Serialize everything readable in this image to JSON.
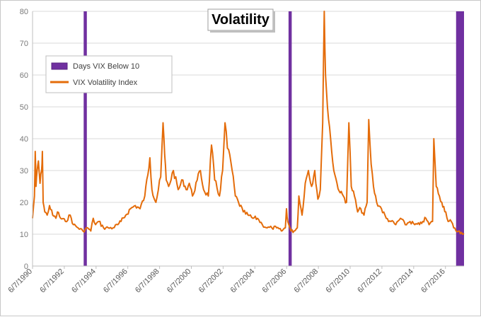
{
  "chart_data": {
    "type": "line",
    "title": "Volatility",
    "xlabel": "",
    "ylabel": "",
    "ylim": [
      0,
      80
    ],
    "y_ticks": [
      0,
      10,
      20,
      30,
      40,
      50,
      60,
      70,
      80
    ],
    "x_tick_labels": [
      "6/7/1990",
      "6/7/1992",
      "6/7/1994",
      "6/7/1996",
      "6/7/1998",
      "6/7/2000",
      "6/7/2002",
      "6/7/2004",
      "6/7/2006",
      "6/7/2008",
      "6/7/2010",
      "6/7/2012",
      "6/7/2014",
      "6/7/2016"
    ],
    "xlim": [
      1990.43,
      2017.6
    ],
    "grid": "horizontal",
    "legend_position": "upper-left",
    "series": [
      {
        "name": "VIX Volatility Index",
        "color": "#e46c0a",
        "x": [
          1990.43,
          1990.55,
          1990.6,
          1990.65,
          1990.72,
          1990.8,
          1990.9,
          1991.0,
          1991.05,
          1991.1,
          1991.2,
          1991.35,
          1991.5,
          1991.7,
          1991.9,
          1992.0,
          1992.2,
          1992.5,
          1992.8,
          1993.0,
          1993.3,
          1993.6,
          1993.9,
          1994.1,
          1994.25,
          1994.4,
          1994.6,
          1994.9,
          1995.2,
          1995.5,
          1995.8,
          1996.0,
          1996.3,
          1996.6,
          1996.9,
          1997.2,
          1997.5,
          1997.82,
          1997.95,
          1998.2,
          1998.5,
          1998.65,
          1998.75,
          1998.85,
          1999.0,
          1999.3,
          1999.6,
          1999.9,
          2000.1,
          2000.3,
          2000.5,
          2000.8,
          2001.0,
          2001.2,
          2001.5,
          2001.7,
          2001.9,
          2002.2,
          2002.4,
          2002.55,
          2002.7,
          2002.85,
          2003.0,
          2003.2,
          2003.4,
          2003.7,
          2004.0,
          2004.3,
          2004.6,
          2004.9,
          2005.2,
          2005.5,
          2005.8,
          2006.1,
          2006.35,
          2006.42,
          2006.5,
          2006.7,
          2006.9,
          2007.1,
          2007.2,
          2007.4,
          2007.6,
          2007.8,
          2008.0,
          2008.2,
          2008.4,
          2008.55,
          2008.7,
          2008.8,
          2008.88,
          2009.0,
          2009.2,
          2009.4,
          2009.6,
          2009.8,
          2010.0,
          2010.2,
          2010.35,
          2010.5,
          2010.7,
          2010.9,
          2011.1,
          2011.3,
          2011.5,
          2011.6,
          2011.75,
          2011.9,
          2012.1,
          2012.4,
          2012.7,
          2013.0,
          2013.3,
          2013.6,
          2013.9,
          2014.2,
          2014.5,
          2014.8,
          2015.0,
          2015.2,
          2015.4,
          2015.62,
          2015.7,
          2015.85,
          2016.05,
          2016.2,
          2016.45,
          2016.6,
          2016.8,
          2016.95,
          2017.1,
          2017.3,
          2017.5,
          2017.6
        ],
        "values": [
          15,
          22,
          36,
          25,
          30,
          33,
          26,
          30,
          36,
          20,
          17,
          16,
          19,
          16,
          15,
          17,
          15,
          14,
          16,
          13,
          12,
          11,
          12,
          11,
          15,
          13,
          14,
          12,
          12,
          12,
          13,
          14,
          16,
          18,
          19,
          18,
          22,
          34,
          24,
          20,
          28,
          45,
          35,
          27,
          25,
          30,
          24,
          27,
          24,
          26,
          22,
          27,
          30,
          24,
          22,
          38,
          27,
          22,
          30,
          45,
          37,
          35,
          30,
          22,
          20,
          17,
          16,
          15,
          15,
          13,
          12,
          12,
          12,
          11,
          12,
          18,
          14,
          11,
          11,
          12,
          22,
          16,
          26,
          30,
          25,
          30,
          21,
          24,
          45,
          80,
          60,
          50,
          40,
          30,
          26,
          23,
          22,
          20,
          45,
          25,
          22,
          17,
          18,
          16,
          20,
          46,
          32,
          25,
          20,
          18,
          15,
          14,
          13,
          15,
          13,
          14,
          13,
          13,
          14,
          15,
          13,
          14,
          40,
          25,
          22,
          20,
          17,
          14,
          14,
          12,
          11,
          11,
          10,
          10
        ]
      },
      {
        "name": "Days VIX Below 10",
        "color": "#7030a0",
        "type": "bar-periods",
        "periods": [
          [
            1993.65,
            1993.85
          ],
          [
            2006.55,
            2006.75
          ],
          [
            2017.1,
            2017.6
          ]
        ]
      }
    ]
  }
}
